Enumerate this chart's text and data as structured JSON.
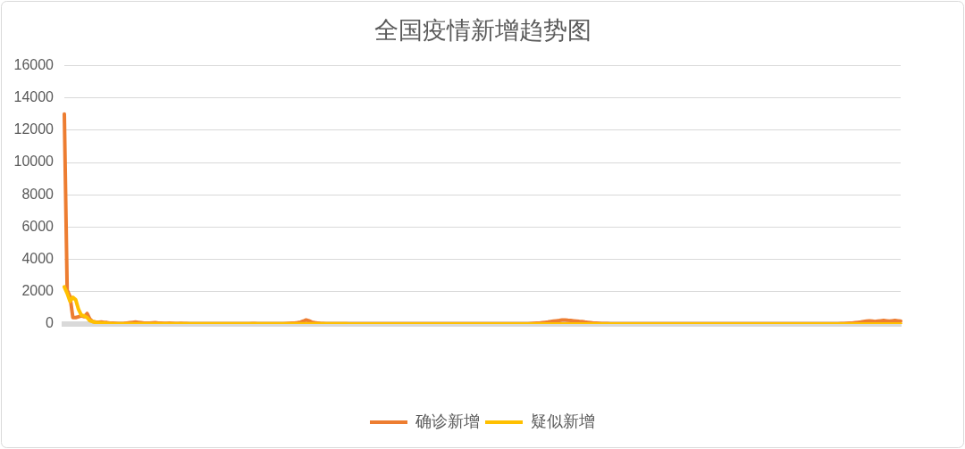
{
  "chart_data": {
    "type": "line",
    "title": "全国疫情新增趋势图",
    "categories": [
      null,
      null,
      null,
      null,
      null,
      null,
      null,
      null,
      null,
      null,
      null,
      null,
      null,
      null,
      null,
      null,
      null,
      null,
      null,
      null,
      null,
      null,
      null,
      null,
      null,
      null,
      null,
      null,
      null,
      null,
      null,
      null,
      null,
      null,
      null,
      null,
      null,
      null,
      null,
      null,
      null,
      null,
      null,
      null,
      null,
      null,
      null,
      null,
      null,
      null,
      null,
      null,
      null,
      null,
      null,
      null,
      null,
      null,
      null,
      null,
      null,
      null,
      null,
      null,
      null,
      null,
      null,
      null,
      null,
      null,
      null,
      null,
      null,
      null,
      null,
      null,
      null,
      null,
      null,
      null,
      null,
      null,
      null,
      null,
      null,
      null,
      null,
      null,
      null,
      null,
      null,
      null,
      null,
      null,
      null,
      null,
      null,
      null,
      null,
      null,
      null,
      null,
      null,
      null,
      null,
      null,
      null,
      null,
      null,
      null,
      null,
      null,
      null,
      null,
      null,
      null,
      null,
      null,
      null,
      null,
      null,
      null,
      null,
      null,
      null,
      null,
      null,
      null,
      null,
      null,
      null,
      null,
      null,
      null,
      null,
      null,
      null,
      null,
      null,
      null,
      null,
      null,
      null,
      null,
      null,
      null,
      null,
      null,
      null,
      null,
      null,
      null,
      null,
      null,
      null,
      null,
      null,
      null,
      null,
      null,
      null,
      null,
      null,
      null,
      null,
      null,
      null,
      null,
      null,
      null,
      null,
      null,
      null,
      null,
      null,
      null,
      null,
      null,
      null,
      null,
      null,
      null,
      null,
      null,
      null,
      null,
      null,
      null,
      null,
      null,
      null,
      null,
      null,
      null,
      null,
      null,
      null,
      null,
      null,
      null,
      null,
      null,
      null,
      null,
      null,
      null,
      null,
      null,
      null,
      null,
      null,
      null,
      null,
      null,
      null,
      null,
      null,
      null,
      null,
      null,
      null,
      null,
      null,
      null,
      null,
      null,
      null,
      null,
      null,
      null,
      null,
      null,
      null,
      null,
      null,
      null,
      null,
      null,
      null,
      null,
      null,
      null,
      null,
      null,
      null,
      null,
      null,
      null,
      null,
      null,
      null,
      null,
      null,
      null,
      null,
      null,
      null,
      null,
      null,
      null,
      null,
      null,
      null,
      null,
      null,
      null,
      null,
      null,
      null,
      null,
      null,
      null,
      null,
      null,
      null,
      null,
      null,
      null,
      null,
      null,
      null,
      null,
      null,
      null,
      null,
      null,
      null,
      null,
      null,
      null,
      null,
      null,
      null,
      null,
      null
    ],
    "series": [
      {
        "name": "确诊新增",
        "color": "#ed7d31",
        "values": [
          13000,
          2100,
          1700,
          400,
          400,
          450,
          500,
          450,
          650,
          300,
          150,
          120,
          110,
          130,
          100,
          90,
          60,
          50,
          40,
          30,
          30,
          40,
          60,
          80,
          100,
          120,
          100,
          80,
          60,
          50,
          60,
          70,
          80,
          60,
          50,
          40,
          40,
          50,
          40,
          30,
          30,
          40,
          30,
          30,
          20,
          20,
          20,
          20,
          20,
          20,
          20,
          20,
          20,
          20,
          20,
          20,
          20,
          20,
          20,
          20,
          20,
          20,
          20,
          20,
          20,
          20,
          30,
          30,
          20,
          20,
          20,
          20,
          20,
          20,
          20,
          20,
          20,
          20,
          30,
          40,
          50,
          60,
          80,
          120,
          180,
          250,
          200,
          120,
          80,
          60,
          40,
          30,
          20,
          20,
          20,
          20,
          20,
          20,
          20,
          20,
          20,
          20,
          20,
          20,
          20,
          20,
          20,
          20,
          20,
          20,
          20,
          20,
          20,
          20,
          20,
          20,
          20,
          20,
          20,
          20,
          20,
          20,
          20,
          20,
          20,
          20,
          20,
          20,
          20,
          20,
          20,
          20,
          20,
          20,
          20,
          20,
          20,
          20,
          20,
          20,
          20,
          20,
          20,
          20,
          20,
          20,
          20,
          20,
          20,
          20,
          20,
          20,
          20,
          20,
          20,
          20,
          20,
          20,
          20,
          20,
          20,
          20,
          20,
          20,
          30,
          40,
          50,
          60,
          80,
          100,
          120,
          150,
          180,
          200,
          220,
          250,
          250,
          230,
          220,
          200,
          180,
          160,
          150,
          120,
          100,
          80,
          60,
          50,
          40,
          30,
          30,
          30,
          20,
          20,
          20,
          20,
          20,
          20,
          20,
          20,
          20,
          20,
          20,
          20,
          20,
          20,
          20,
          20,
          20,
          20,
          20,
          20,
          20,
          20,
          20,
          20,
          20,
          20,
          20,
          20,
          20,
          20,
          20,
          20,
          20,
          20,
          20,
          20,
          20,
          20,
          20,
          20,
          20,
          20,
          20,
          20,
          20,
          20,
          20,
          20,
          20,
          20,
          20,
          20,
          20,
          20,
          20,
          20,
          20,
          20,
          20,
          20,
          20,
          20,
          20,
          20,
          20,
          20,
          20,
          20,
          20,
          20,
          20,
          20,
          20,
          20,
          20,
          20,
          20,
          20,
          20,
          20,
          20,
          30,
          30,
          40,
          50,
          60,
          80,
          100,
          120,
          150,
          180,
          200,
          180,
          150,
          180,
          200,
          220,
          200,
          180,
          200,
          220,
          200,
          180
        ]
      },
      {
        "name": "疑似新增",
        "color": "#ffc000",
        "values": [
          2300,
          1900,
          1400,
          1650,
          1500,
          900,
          550,
          500,
          400,
          200,
          150,
          100,
          80,
          60,
          50,
          40,
          30,
          20,
          20,
          20,
          10,
          10,
          10,
          10,
          10,
          10,
          10,
          10,
          10,
          10,
          10,
          10,
          10,
          10,
          10,
          10,
          10,
          10,
          10,
          10,
          10,
          10,
          10,
          10,
          10,
          10,
          10,
          10,
          10,
          10,
          10,
          10,
          10,
          10,
          10,
          10,
          10,
          10,
          10,
          10,
          10,
          10,
          10,
          10,
          10,
          10,
          10,
          10,
          10,
          10,
          10,
          10,
          10,
          10,
          10,
          10,
          10,
          10,
          10,
          10,
          10,
          10,
          10,
          10,
          10,
          10,
          10,
          10,
          10,
          10,
          10,
          10,
          10,
          10,
          10,
          10,
          10,
          10,
          10,
          10,
          0,
          0,
          0,
          0,
          0,
          0,
          0,
          0,
          0,
          0,
          0,
          0,
          0,
          0,
          0,
          0,
          0,
          0,
          0,
          0,
          0,
          0,
          0,
          0,
          0,
          0,
          0,
          0,
          0,
          0,
          0,
          0,
          0,
          0,
          0,
          0,
          0,
          0,
          0,
          0,
          0,
          0,
          0,
          0,
          0,
          0,
          0,
          0,
          0,
          0,
          0,
          0,
          0,
          0,
          0,
          0,
          0,
          0,
          0,
          0,
          0,
          0,
          0,
          0,
          0,
          0,
          0,
          0,
          0,
          0,
          0,
          0,
          0,
          0,
          0,
          0,
          0,
          0,
          0,
          0,
          0,
          0,
          0,
          0,
          0,
          0,
          0,
          0,
          0,
          0,
          0,
          0,
          0,
          0,
          0,
          0,
          0,
          0,
          0,
          0,
          0,
          0,
          0,
          0,
          0,
          0,
          0,
          0,
          0,
          0,
          0,
          0,
          0,
          0,
          0,
          0,
          0,
          0,
          0,
          0,
          0,
          0,
          0,
          0,
          0,
          0,
          0,
          0,
          0,
          0,
          0,
          0,
          0,
          0,
          0,
          0,
          0,
          0,
          0,
          0,
          0,
          0,
          0,
          0,
          0,
          0,
          0,
          0,
          0,
          0,
          0,
          0,
          0,
          0,
          0,
          0,
          0,
          0,
          0,
          0,
          0,
          0,
          0,
          0,
          0,
          0,
          0,
          0,
          0,
          0,
          0,
          0,
          0,
          0,
          0,
          0,
          0,
          0,
          0,
          0,
          0,
          0,
          0,
          0,
          0,
          0,
          0,
          0,
          0,
          0,
          0,
          0,
          0,
          0,
          0
        ]
      }
    ],
    "ylim": [
      0,
      16000
    ],
    "yticks": [
      0,
      2000,
      4000,
      6000,
      8000,
      10000,
      12000,
      14000,
      16000
    ],
    "grid": "y",
    "legend": "bottom",
    "marker": "none",
    "line_style": "solid"
  }
}
